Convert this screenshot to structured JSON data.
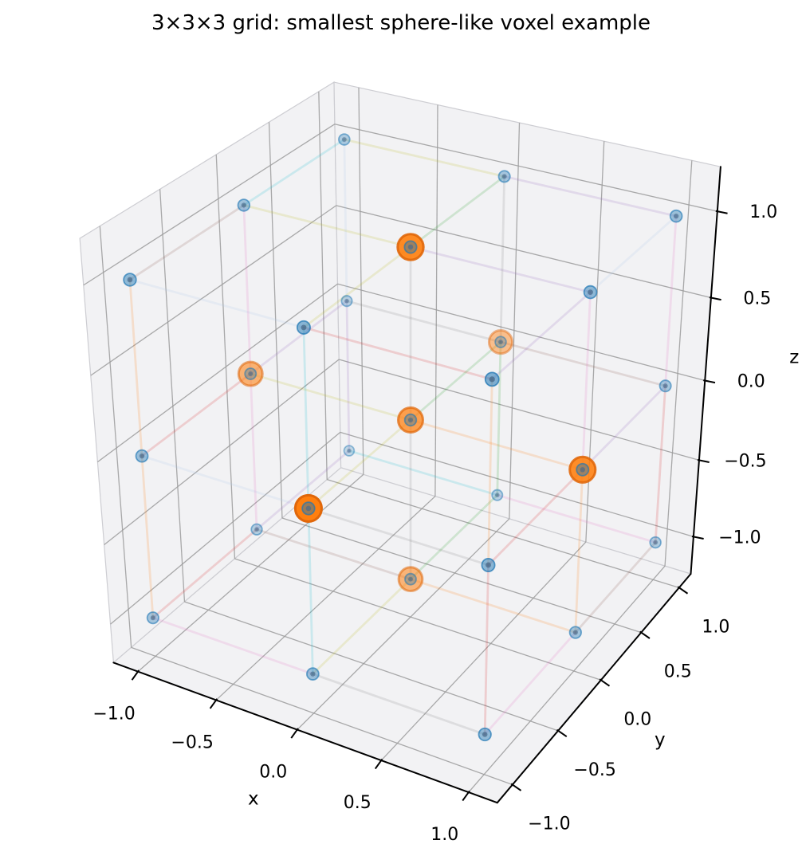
{
  "chart_data": {
    "type": "scatter",
    "subtype": "3d-lattice-scatter",
    "title": "3×3×3 grid: smallest sphere-like voxel example",
    "xlabel": "x",
    "ylabel": "y",
    "zlabel": "z",
    "xlim": [
      -1.16,
      1.16
    ],
    "ylim": [
      -1.16,
      1.16
    ],
    "zlim": [
      -1.25,
      1.25
    ],
    "ticks": {
      "values": [
        -1,
        -0.5,
        0,
        0.5,
        1
      ],
      "labels": [
        "−1.0",
        "−0.5",
        "0.0",
        "0.5",
        "1.0"
      ]
    },
    "grid_levels": [
      -1,
      0,
      1
    ],
    "grid_points": [
      [
        -1,
        -1,
        -1
      ],
      [
        -1,
        -1,
        0
      ],
      [
        -1,
        -1,
        1
      ],
      [
        -1,
        0,
        -1
      ],
      [
        -1,
        0,
        0
      ],
      [
        -1,
        0,
        1
      ],
      [
        -1,
        1,
        -1
      ],
      [
        -1,
        1,
        0
      ],
      [
        -1,
        1,
        1
      ],
      [
        0,
        -1,
        -1
      ],
      [
        0,
        -1,
        0
      ],
      [
        0,
        -1,
        1
      ],
      [
        0,
        0,
        -1
      ],
      [
        0,
        0,
        0
      ],
      [
        0,
        0,
        1
      ],
      [
        0,
        1,
        -1
      ],
      [
        0,
        1,
        0
      ],
      [
        0,
        1,
        1
      ],
      [
        1,
        -1,
        -1
      ],
      [
        1,
        -1,
        0
      ],
      [
        1,
        -1,
        1
      ],
      [
        1,
        0,
        -1
      ],
      [
        1,
        0,
        0
      ],
      [
        1,
        0,
        1
      ],
      [
        1,
        1,
        -1
      ],
      [
        1,
        1,
        0
      ],
      [
        1,
        1,
        1
      ]
    ],
    "voxel_points": [
      [
        0,
        0,
        0
      ],
      [
        1,
        0,
        0
      ],
      [
        -1,
        0,
        0
      ],
      [
        0,
        1,
        0
      ],
      [
        0,
        -1,
        0
      ],
      [
        0,
        0,
        1
      ],
      [
        0,
        0,
        -1
      ]
    ],
    "colors": {
      "grid_point": "#1f77b4",
      "grid_point_core": "#4a6a8a",
      "voxel_point": "#ff7f0e",
      "voxel_edge": "#e0670a",
      "pane_fill": "#f2f2f4",
      "pane_edge": "#cdcdd2",
      "grid_line": "#9b9b9b",
      "axis_line": "#000000",
      "tick_label": "#000000",
      "lattice_edge_palette": [
        "#e377c2",
        "#2ca02c",
        "#17becf",
        "#9467bd",
        "#ff7f0e",
        "#bcbd22",
        "#8c564b",
        "#d62728",
        "#7f7f7f",
        "#aec7e8"
      ]
    },
    "view": {
      "projection": "perspective",
      "azim_deg": -60,
      "elev_deg": 30,
      "grid": true,
      "legend": false,
      "depthshade": true
    }
  }
}
